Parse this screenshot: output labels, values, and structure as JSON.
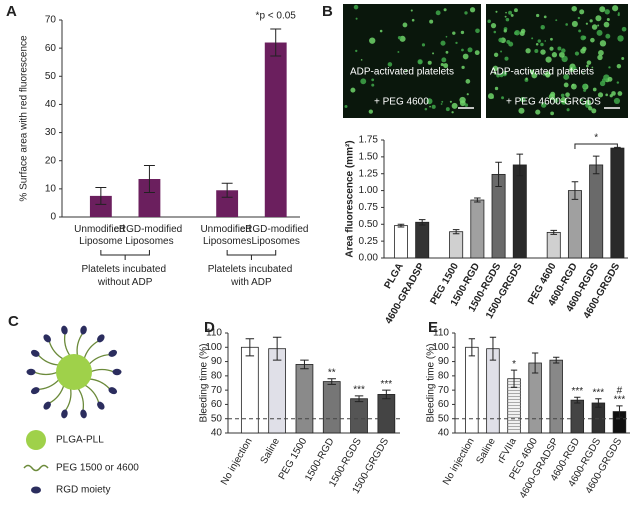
{
  "chart_data": [
    {
      "type": "bar",
      "panel": "A",
      "ylabel": "% Surface area with red fluorescence",
      "categories": [
        "Unmodified Liposome",
        "cRGD-modified Liposomes",
        "Unmodified Liposomes",
        "cRGD-modified Liposomes"
      ],
      "values": [
        7.5,
        13.5,
        9.5,
        62
      ],
      "errors": [
        3,
        4.8,
        2.5,
        4.8
      ],
      "color": "#6b1f5e",
      "ylim": [
        0,
        70
      ],
      "yticks": [
        0,
        10,
        20,
        30,
        40,
        50,
        60,
        70
      ],
      "groups": [
        "Platelets incubated without ADP",
        "Platelets incubated with ADP"
      ],
      "annotation": "*p < 0.05"
    },
    {
      "type": "bar",
      "panel": "B",
      "ylabel": "Area fluorescence (mm²)",
      "categories": [
        "PLGA",
        "4600-GRADSP",
        "PEG 1500",
        "1500-RGD",
        "1500-RGDS",
        "1500-GRGDS",
        "PEG 4600",
        "4600-RGD",
        "4600-RGDS",
        "4600-GRGDS"
      ],
      "values": [
        0.48,
        0.53,
        0.39,
        0.86,
        1.24,
        1.38,
        0.38,
        1.0,
        1.38,
        1.63
      ],
      "errors": [
        0.02,
        0.04,
        0.03,
        0.03,
        0.18,
        0.16,
        0.03,
        0.13,
        0.13,
        0.01
      ],
      "colors": [
        "#ffffff",
        "#333333",
        "#d0d0d0",
        "#a0a0a0",
        "#6a6a6a",
        "#2a2a2a",
        "#d0d0d0",
        "#a0a0a0",
        "#6a6a6a",
        "#2a2a2a"
      ],
      "ylim": [
        0,
        1.75
      ],
      "yticks": [
        {
          "value": 0,
          "label": "0.00"
        },
        {
          "value": 0.25,
          "label": "0.25"
        },
        {
          "value": 0.5,
          "label": "0.50"
        },
        {
          "value": 0.75,
          "label": "0.75"
        },
        {
          "value": 1,
          "label": "1.00"
        },
        {
          "value": 1.25,
          "label": "1.25"
        },
        {
          "value": 1.5,
          "label": "1.50"
        },
        {
          "value": 1.75,
          "label": "1.75"
        }
      ],
      "annotation": "*"
    },
    {
      "type": "bar",
      "panel": "D",
      "ylabel": "Bleeding time (%)",
      "categories": [
        "No injection",
        "Saline",
        "PEG 1500",
        "1500-RGD",
        "1500-RGDS",
        "1500-GRGDS"
      ],
      "values": [
        100,
        99,
        88,
        76,
        64,
        67
      ],
      "errors": [
        6,
        8,
        3,
        2,
        2,
        3
      ],
      "colors": [
        "#ffffff",
        "#e0e0e8",
        "#8a8a8a",
        "#767676",
        "#555555",
        "#444444"
      ],
      "significance": [
        null,
        null,
        null,
        "**",
        "***",
        "***"
      ],
      "ylim": [
        40,
        110
      ],
      "yticks": [
        40,
        50,
        60,
        70,
        80,
        90,
        100,
        110
      ],
      "reference_line": 50
    },
    {
      "type": "bar",
      "panel": "E",
      "ylabel": "Bleeding time (%)",
      "categories": [
        "No injection",
        "Saline",
        "rFVIIa",
        "PEG 4600",
        "4600-GRADSP",
        "4600-RGD",
        "4600-RGDS",
        "4600-GRGDS"
      ],
      "values": [
        100,
        99,
        78,
        89,
        91,
        63,
        61,
        55
      ],
      "errors": [
        6,
        8,
        6,
        7,
        2,
        2,
        3,
        4
      ],
      "colors": [
        "#ffffff",
        "#e0e0e8",
        "#f2f2f2",
        "#9a9a9a",
        "#888888",
        "#444444",
        "#333333",
        "#111111"
      ],
      "significance": [
        null,
        null,
        "*",
        null,
        null,
        "***",
        "***",
        "***"
      ],
      "hash": [
        null,
        null,
        null,
        null,
        null,
        null,
        null,
        "#"
      ],
      "ylim": [
        40,
        110
      ],
      "yticks": [
        40,
        50,
        60,
        70,
        80,
        90,
        100,
        110
      ],
      "reference_line": 50
    }
  ],
  "micrographs": [
    {
      "line1": "ADP-activated platelets",
      "line2": "+ PEG 4600"
    },
    {
      "line1": "ADP-activated platelets",
      "line2": "+ PEG 4600-GRGDS"
    }
  ],
  "diagram": {
    "panel": "C",
    "legend": [
      "PLGA-PLL",
      "PEG 1500 or 4600",
      "RGD moiety"
    ]
  }
}
